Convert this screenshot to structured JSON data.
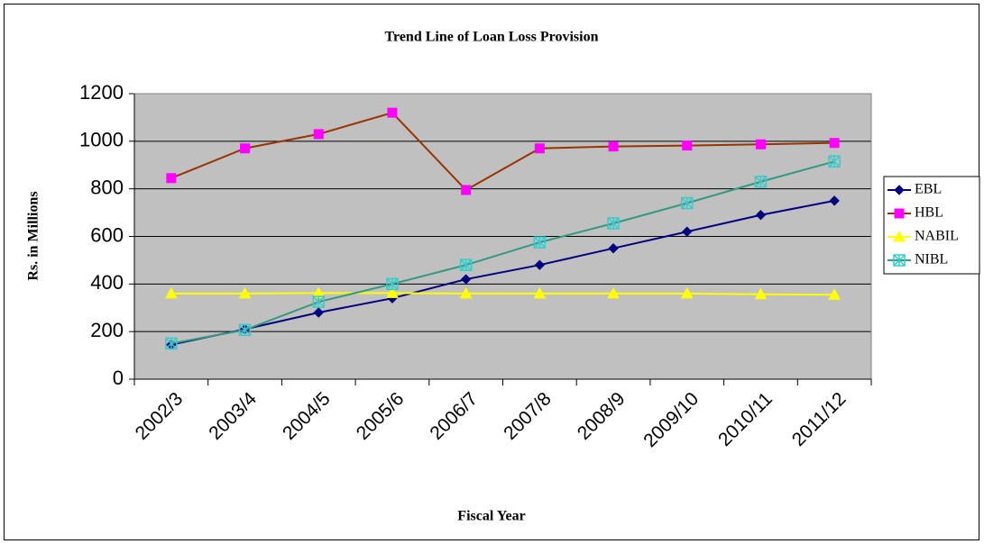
{
  "chart_data": {
    "type": "line",
    "title": "Trend Line of Loan Loss Provision",
    "x_label": "Fiscal Year",
    "y_label": "Rs. in Millions",
    "categories": [
      "2002/3",
      "2003/4",
      "2004/5",
      "2005/6",
      "2006/7",
      "2007/8",
      "2008/9",
      "2009/10",
      "2010/11",
      "2011/12"
    ],
    "series": [
      {
        "name": "EBL",
        "color": "#000080",
        "marker_color": "#000080",
        "marker": "diamond",
        "values": [
          145,
          210,
          280,
          340,
          420,
          480,
          550,
          620,
          690,
          750
        ]
      },
      {
        "name": "HBL",
        "color": "#993300",
        "marker_color": "#ff00ff",
        "marker": "square",
        "values": [
          845,
          970,
          1030,
          1120,
          795,
          970,
          978,
          982,
          987,
          993
        ]
      },
      {
        "name": "NABIL",
        "color": "#ffff00",
        "marker_color": "#ffff00",
        "marker": "triangle",
        "values": [
          360,
          360,
          362,
          362,
          360,
          360,
          360,
          360,
          357,
          355
        ]
      },
      {
        "name": "NIBL",
        "color": "#339980",
        "marker_color": "#33cccc",
        "marker": "star",
        "values": [
          150,
          207,
          325,
          400,
          480,
          575,
          655,
          740,
          830,
          915
        ]
      }
    ],
    "ylim": [
      0,
      1200
    ],
    "yticks": [
      0,
      200,
      400,
      600,
      800,
      1000,
      1200
    ],
    "grid": true,
    "plot_background": "#c0c0c0",
    "legend": "right"
  }
}
